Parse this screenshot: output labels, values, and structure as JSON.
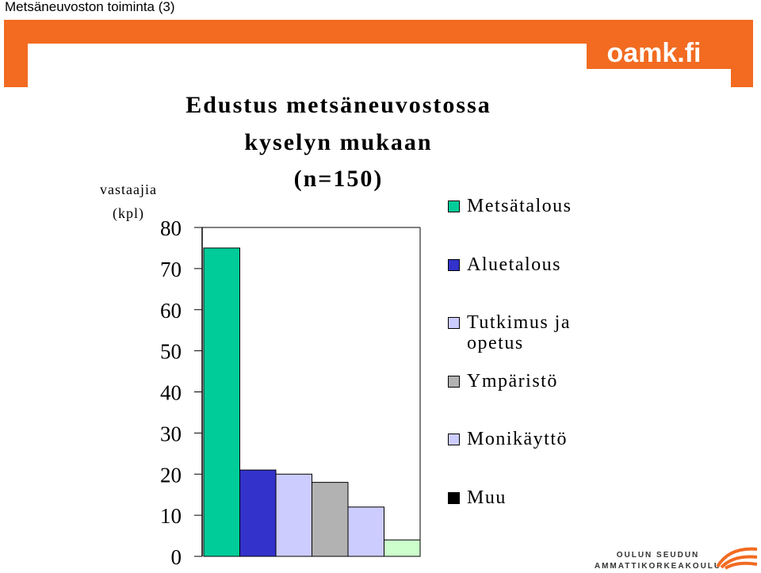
{
  "window_title": "Metsäneuvoston toiminta (3)",
  "brand": "oamk.fi",
  "logo_lines": [
    "OULUN SEUDUN",
    "AMMATTIKORKEAKOULU"
  ],
  "chart_data": {
    "type": "bar",
    "title": [
      "Edustus metsäneuvostossa",
      "kyselyn mukaan",
      "(n=150)"
    ],
    "y_label": [
      "vastaajia",
      "(kpl)"
    ],
    "categories": [
      "Metsätalous",
      "Aluetalous",
      "Tutkimus ja opetus",
      "Ympäristö",
      "Monikäyttö",
      "Muu"
    ],
    "values": [
      75,
      21,
      20,
      18,
      12,
      4
    ],
    "colors": [
      "#00cc99",
      "#3333cc",
      "#ccccff",
      "#b2b2b2",
      "#ccccff",
      "#ccffcc"
    ],
    "legend_colors": [
      "#00cc99",
      "#3333cc",
      "#ccccff",
      "#b2b2b2",
      "#ccccff",
      "#000000"
    ],
    "ylim": [
      0,
      80
    ],
    "yticks": [
      0,
      10,
      20,
      30,
      40,
      50,
      60,
      70,
      80
    ],
    "grid": false,
    "legend": "right"
  }
}
